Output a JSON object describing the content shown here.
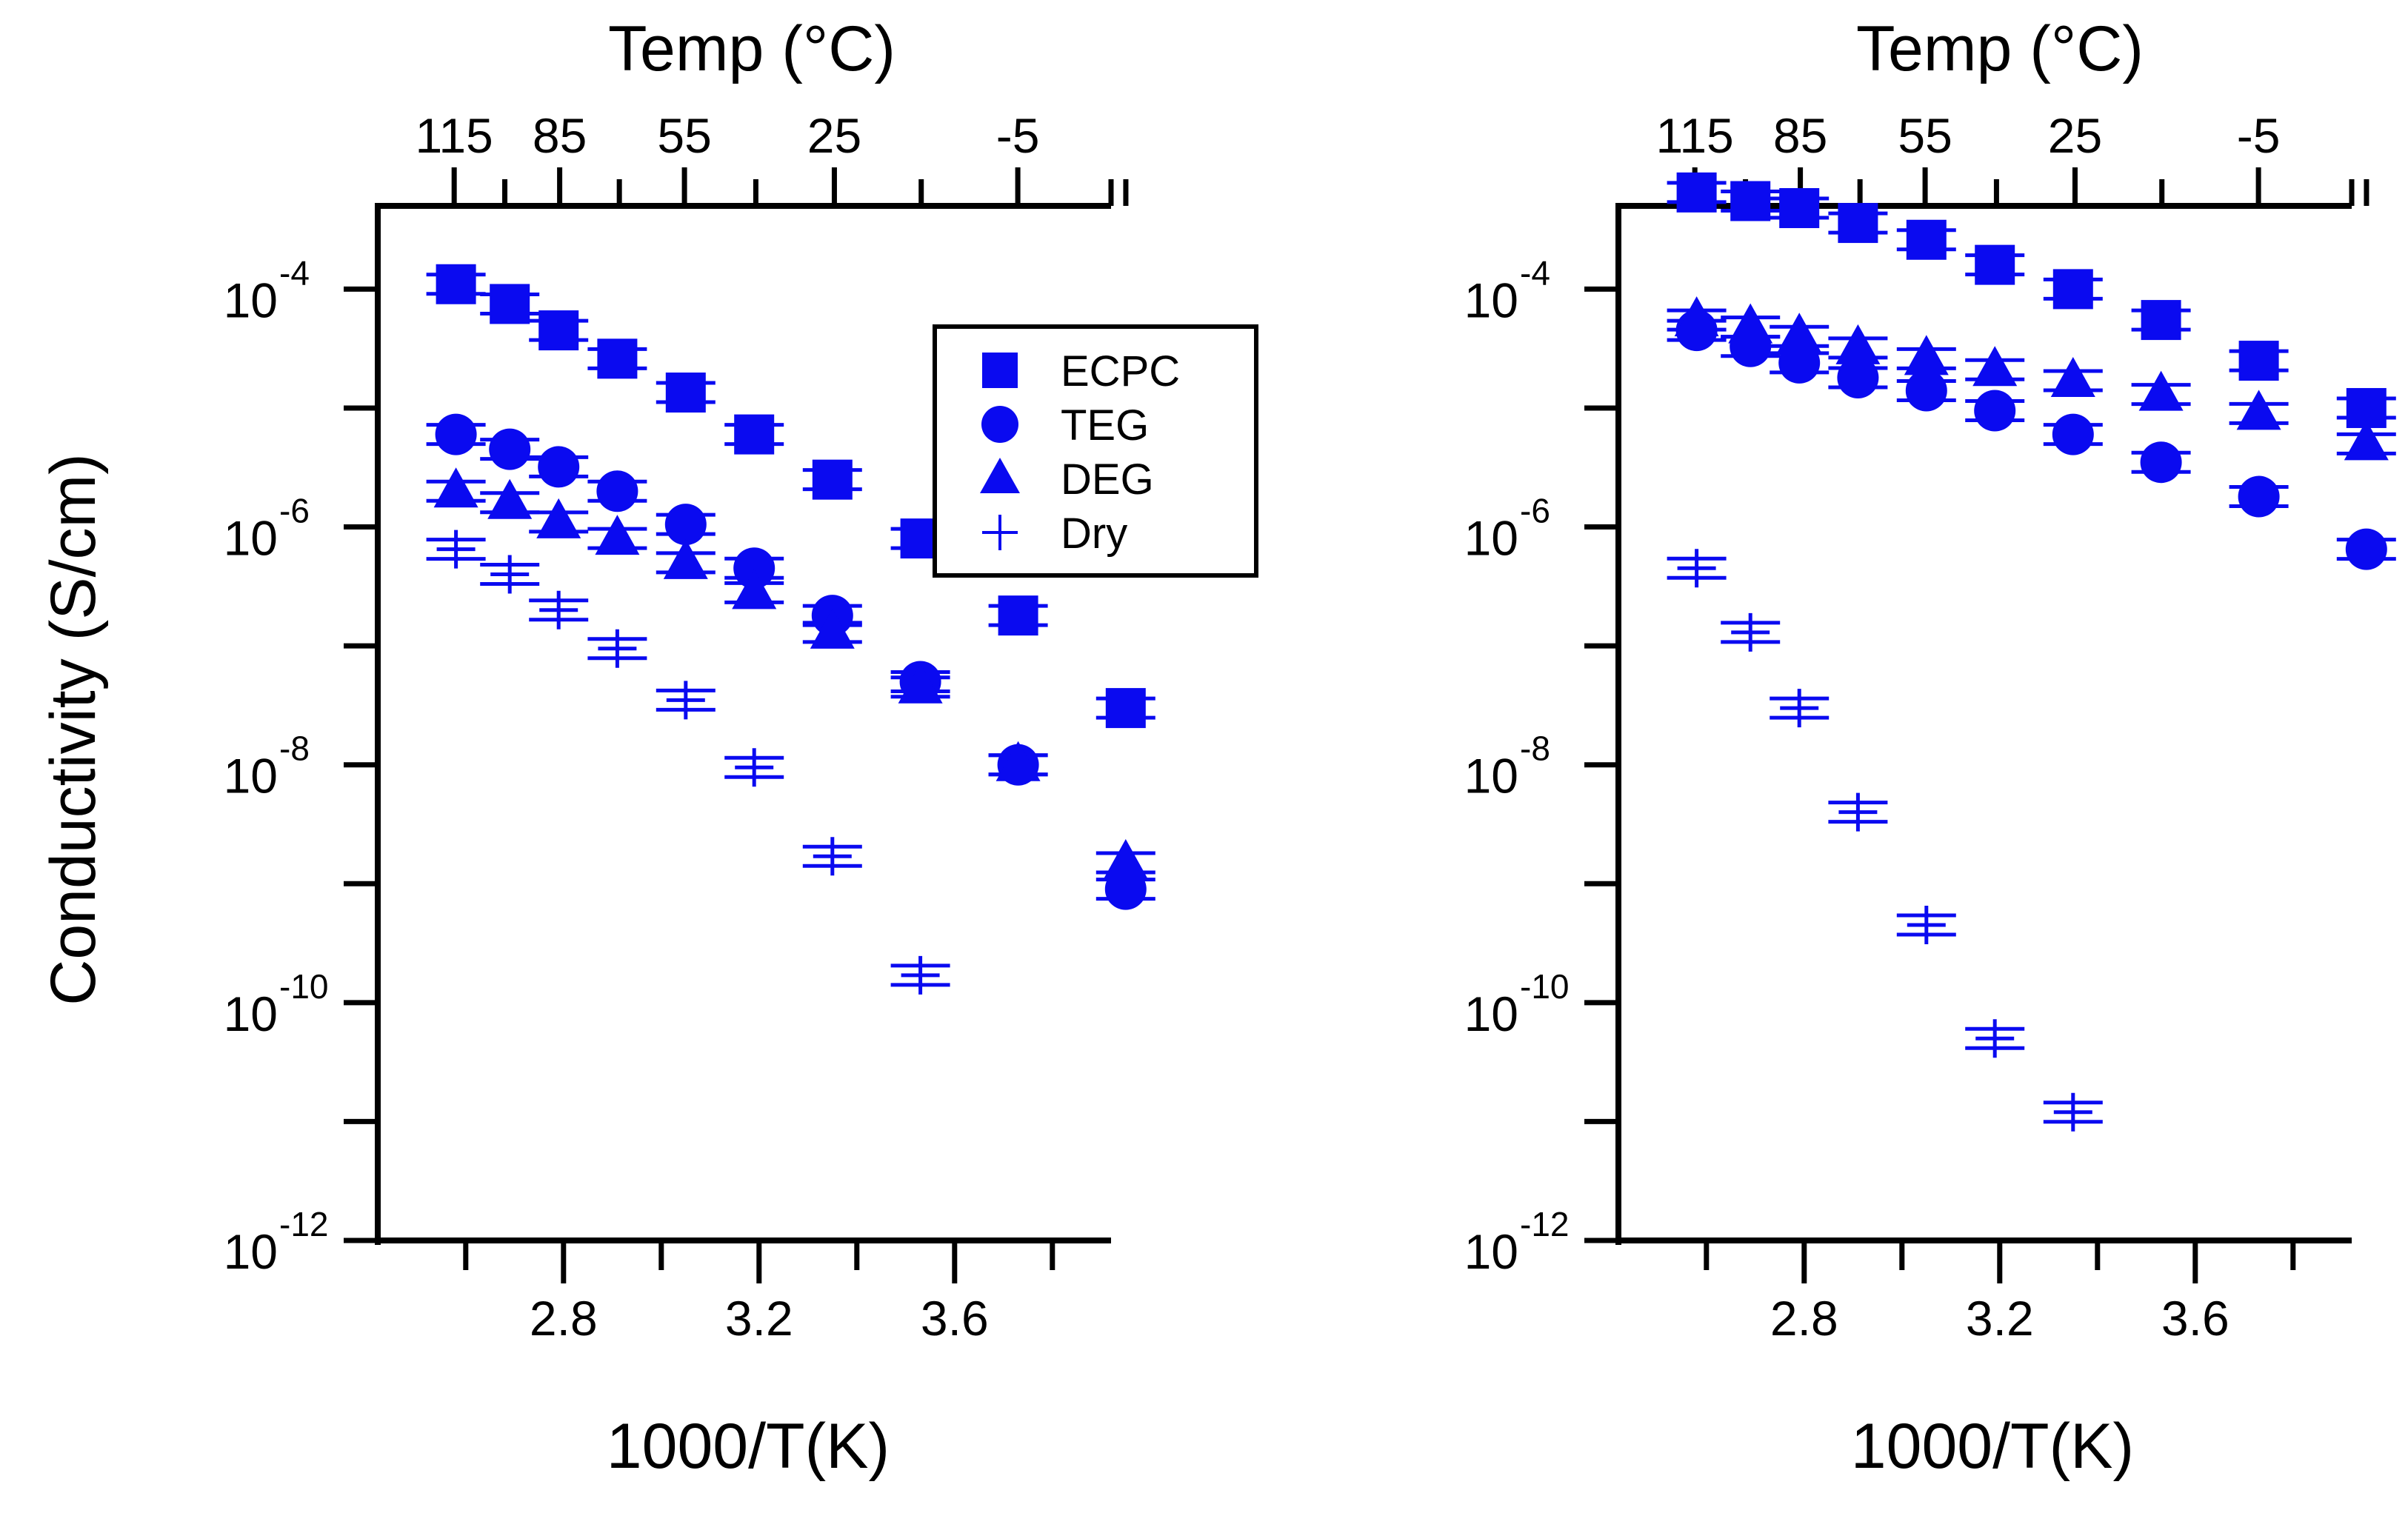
{
  "colors": {
    "marker": "#0a0af0",
    "axis": "#000000",
    "background": "#ffffff"
  },
  "chart_data": [
    {
      "type": "scatter",
      "panel": "left",
      "xlabel": "1000/T(K)",
      "ylabel": "Conductivity (S/cm)",
      "top_axis_title": "Temp (°C)",
      "xlim": [
        2.42,
        3.92
      ],
      "ylim_log10": [
        -12,
        -3.3
      ],
      "x_ticks": [
        2.8,
        3.2,
        3.6
      ],
      "x_tick_labels": [
        "2.8",
        "3.2",
        "3.6"
      ],
      "y_tick_labels": [
        {
          "base": "10",
          "exp": "-4",
          "log": -4
        },
        {
          "base": "10",
          "exp": "-6",
          "log": -6
        },
        {
          "base": "10",
          "exp": "-8",
          "log": -8
        },
        {
          "base": "10",
          "exp": "-10",
          "log": -10
        },
        {
          "base": "10",
          "exp": "-12",
          "log": -12
        }
      ],
      "top_ticks_celsius": [
        115,
        85,
        55,
        25,
        -5
      ],
      "top_tick_labels": [
        "115",
        "85",
        "55",
        "25",
        "-5"
      ],
      "top_minor_ticks_celsius": [
        100,
        70,
        40,
        10,
        -20
      ],
      "legend": [
        "ECPC",
        "TEG",
        "DEG",
        "Dry"
      ],
      "series": [
        {
          "name": "ECPC",
          "marker": "square",
          "x": [
            2.58,
            2.69,
            2.79,
            2.91,
            3.05,
            3.19,
            3.35,
            3.53,
            3.73,
            3.95
          ],
          "y": [
            0.00011,
            7.5e-05,
            4.5e-05,
            2.6e-05,
            1.35e-05,
            6e-06,
            2.5e-06,
            8e-07,
            1.8e-07,
            3e-08
          ]
        },
        {
          "name": "TEG",
          "marker": "circle",
          "x": [
            2.58,
            2.69,
            2.79,
            2.91,
            3.05,
            3.19,
            3.35,
            3.53,
            3.73,
            3.95
          ],
          "y": [
            6e-06,
            4.5e-06,
            3.2e-06,
            2e-06,
            1.05e-06,
            4.5e-07,
            1.8e-07,
            5e-08,
            1e-08,
            9e-10
          ]
        },
        {
          "name": "DEG",
          "marker": "triangle",
          "x": [
            2.58,
            2.69,
            2.79,
            2.91,
            3.05,
            3.19,
            3.35,
            3.53,
            3.73,
            3.95
          ],
          "y": [
            2e-06,
            1.6e-06,
            1.1e-06,
            8e-07,
            5e-07,
            2.8e-07,
            1.3e-07,
            4.5e-08,
            1e-08,
            1.5e-09
          ]
        },
        {
          "name": "Dry",
          "marker": "plus",
          "x": [
            2.58,
            2.69,
            2.79,
            2.91,
            3.05,
            3.19,
            3.35,
            3.53
          ],
          "y": [
            6.5e-07,
            4e-07,
            2e-07,
            9.5e-08,
            3.5e-08,
            9.5e-09,
            1.7e-09,
            1.7e-10
          ]
        }
      ]
    },
    {
      "type": "scatter",
      "panel": "right",
      "xlabel": "1000/T(K)",
      "top_axis_title": "Temp (°C)",
      "xlim": [
        2.42,
        3.92
      ],
      "ylim_log10": [
        -12,
        -3.3
      ],
      "x_ticks": [
        2.8,
        3.2,
        3.6
      ],
      "x_tick_labels": [
        "2.8",
        "3.2",
        "3.6"
      ],
      "y_tick_labels": [
        {
          "base": "10",
          "exp": "-4",
          "log": -4
        },
        {
          "base": "10",
          "exp": "-6",
          "log": -6
        },
        {
          "base": "10",
          "exp": "-8",
          "log": -8
        },
        {
          "base": "10",
          "exp": "-10",
          "log": -10
        },
        {
          "base": "10",
          "exp": "-12",
          "log": -12
        }
      ],
      "top_ticks_celsius": [
        115,
        85,
        55,
        25,
        -5
      ],
      "top_tick_labels": [
        "115",
        "85",
        "55",
        "25",
        "-5"
      ],
      "top_minor_ticks_celsius": [
        100,
        70,
        40,
        10,
        -20
      ],
      "series": [
        {
          "name": "ECPC",
          "marker": "square",
          "x": [
            2.58,
            2.69,
            2.79,
            2.91,
            3.05,
            3.19,
            3.35,
            3.53,
            3.73,
            3.95
          ],
          "y": [
            0.00065,
            0.00055,
            0.00048,
            0.00036,
            0.00026,
            0.00016,
            0.0001,
            5.5e-05,
            2.5e-05,
            1e-05
          ]
        },
        {
          "name": "TEG",
          "marker": "circle",
          "x": [
            2.58,
            2.69,
            2.79,
            2.91,
            3.05,
            3.19,
            3.35,
            3.53,
            3.73,
            3.95
          ],
          "y": [
            4.5e-05,
            3.3e-05,
            2.4e-05,
            1.8e-05,
            1.4e-05,
            9.5e-06,
            6e-06,
            3.5e-06,
            1.8e-06,
            6.5e-07
          ]
        },
        {
          "name": "DEG",
          "marker": "triangle",
          "x": [
            2.58,
            2.69,
            2.79,
            2.91,
            3.05,
            3.19,
            3.35,
            3.53,
            3.73,
            3.95
          ],
          "y": [
            5.5e-05,
            4.8e-05,
            4e-05,
            3.2e-05,
            2.6e-05,
            2.1e-05,
            1.7e-05,
            1.3e-05,
            9e-06,
            5e-06
          ]
        },
        {
          "name": "Dry",
          "marker": "plus",
          "x": [
            2.58,
            2.69,
            2.79,
            2.91,
            3.05,
            3.19,
            3.35
          ],
          "y": [
            4.5e-07,
            1.3e-07,
            3e-08,
            4e-09,
            4.5e-10,
            5e-11,
            1.2e-11
          ]
        }
      ]
    }
  ]
}
